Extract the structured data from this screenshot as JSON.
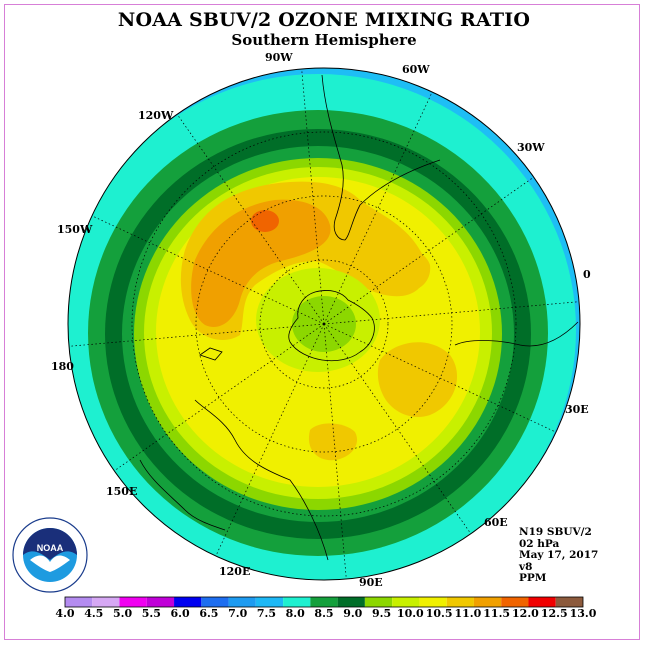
{
  "title": "NOAA SBUV/2 OZONE MIXING RATIO",
  "subtitle": "Southern Hemisphere",
  "longitude_labels": [
    "90W",
    "60W",
    "30W",
    "0",
    "30E",
    "60E",
    "90E",
    "120E",
    "150E",
    "180",
    "150W",
    "120W"
  ],
  "info": {
    "satellite": "N19 SBUV/2",
    "pressure": "02 hPa",
    "date": "May 17, 2017",
    "version": "v8",
    "units": "PPM"
  },
  "colorbar": {
    "ticks": [
      "4.0",
      "4.5",
      "5.0",
      "5.5",
      "6.0",
      "6.5",
      "7.0",
      "7.5",
      "8.0",
      "8.5",
      "9.0",
      "9.5",
      "10.0",
      "10.5",
      "11.0",
      "11.5",
      "12.0",
      "12.5",
      "13.0"
    ],
    "colors": [
      "#b48cf0",
      "#d6a8f4",
      "#f000f0",
      "#c000d8",
      "#0000f0",
      "#1e6ef0",
      "#1e9bf0",
      "#1eb8f5",
      "#1ef0d0",
      "#14a03c",
      "#006e28",
      "#8cd700",
      "#c8f000",
      "#f0f000",
      "#f0c800",
      "#f0a000",
      "#f06400",
      "#f00000",
      "#8c5a3c"
    ]
  },
  "logo_text": "NOAA"
}
